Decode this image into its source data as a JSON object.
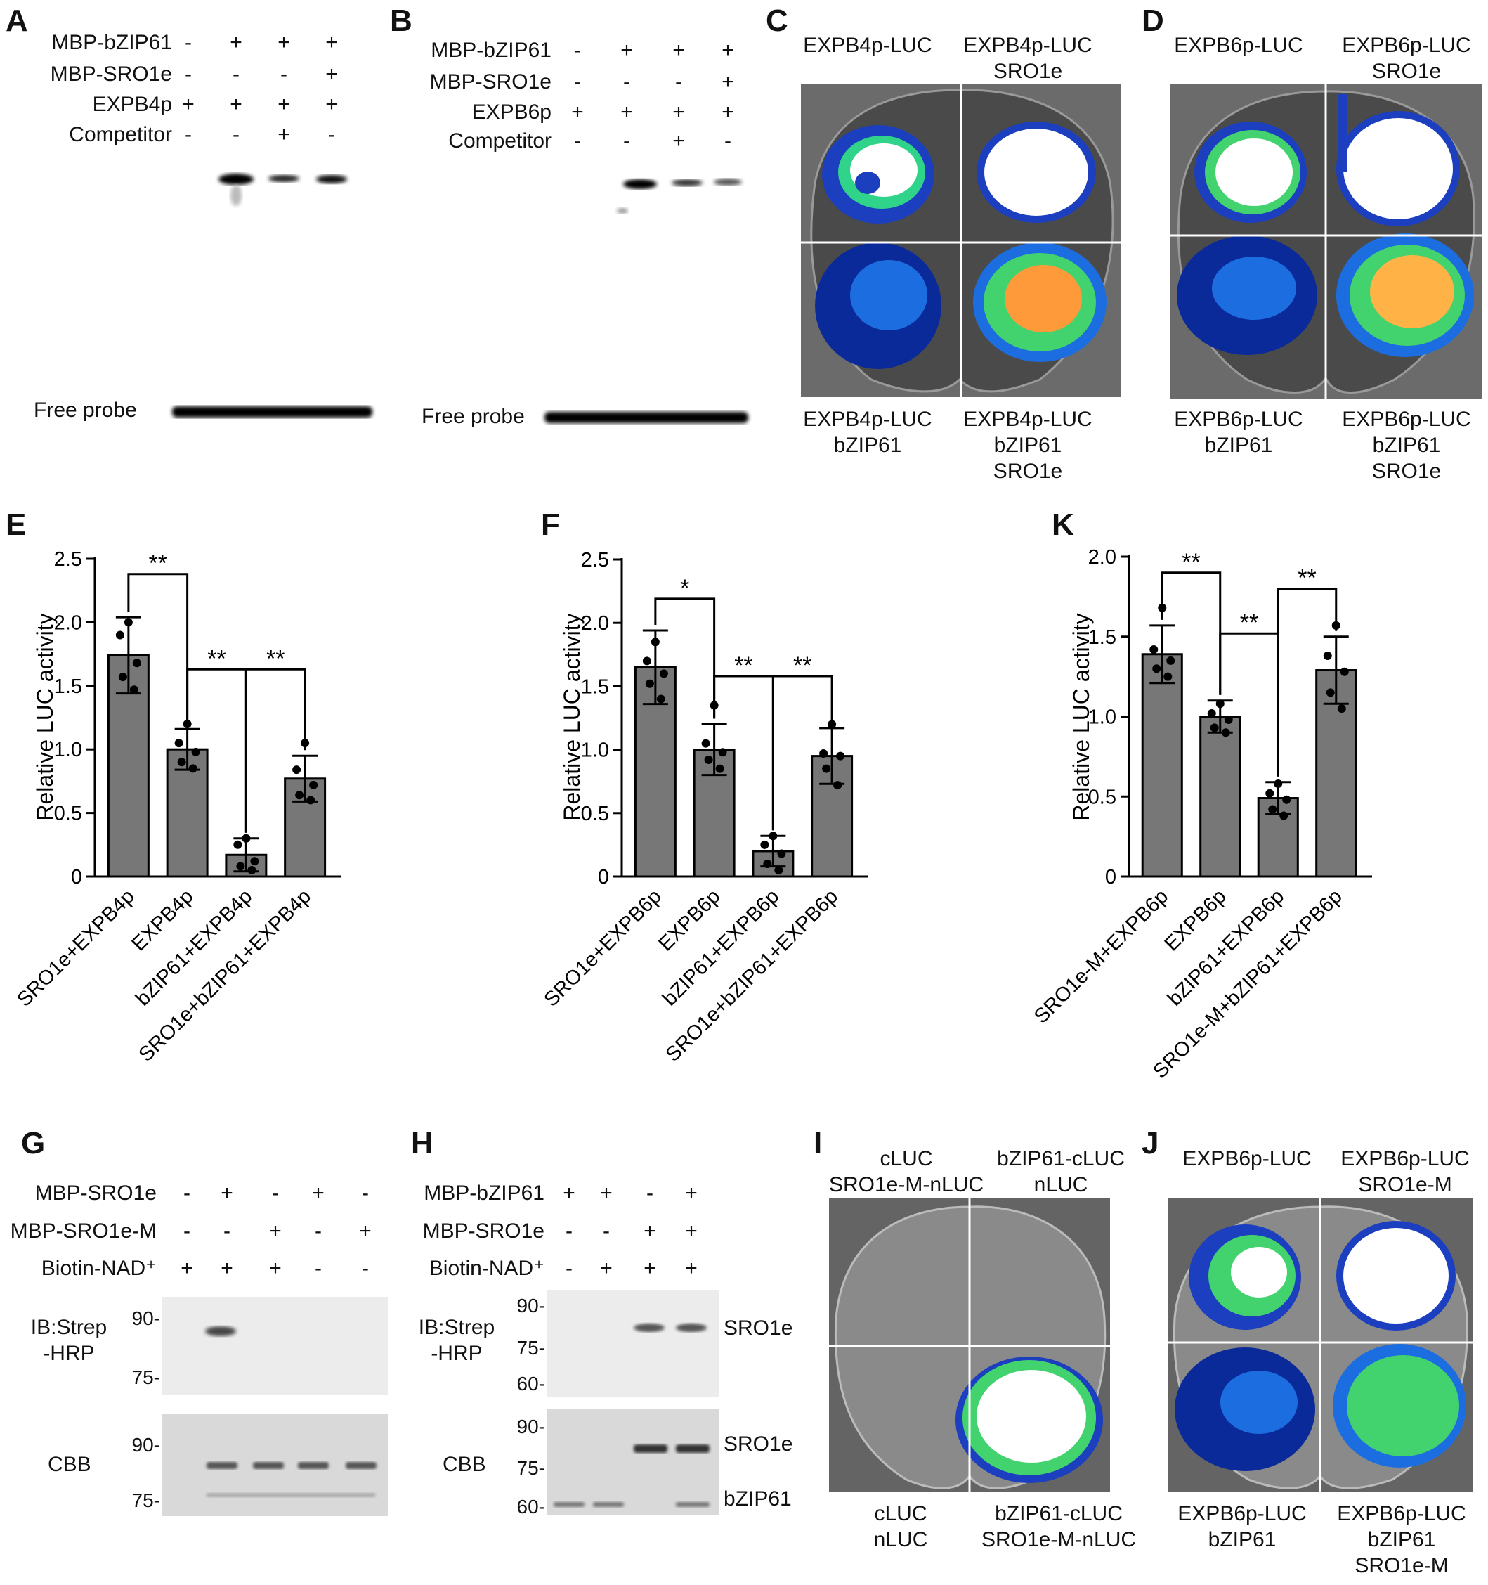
{
  "panels": {
    "A": {
      "letter": "A",
      "rows": [
        {
          "label": "MBP-bZIP61",
          "signs": [
            "-",
            "+",
            "+",
            "+"
          ]
        },
        {
          "label": "MBP-SRO1e",
          "signs": [
            "-",
            "-",
            "-",
            "+"
          ]
        },
        {
          "label": "EXPB4p",
          "signs": [
            "+",
            "+",
            "+",
            "+"
          ]
        },
        {
          "label": "Competitor",
          "signs": [
            "-",
            "-",
            "+",
            "-"
          ]
        }
      ],
      "free_probe": "Free probe"
    },
    "B": {
      "letter": "B",
      "rows": [
        {
          "label": "MBP-bZIP61",
          "signs": [
            "-",
            "+",
            "+",
            "+"
          ]
        },
        {
          "label": "MBP-SRO1e",
          "signs": [
            "-",
            "-",
            "-",
            "+"
          ]
        },
        {
          "label": "EXPB6p",
          "signs": [
            "+",
            "+",
            "+",
            "+"
          ]
        },
        {
          "label": "Competitor",
          "signs": [
            "-",
            "-",
            "+",
            "-"
          ]
        }
      ],
      "free_probe": "Free probe"
    },
    "C": {
      "letter": "C",
      "top_left": "EXPB4p-LUC",
      "top_right": [
        "EXPB4p-LUC",
        "SRO1e"
      ],
      "bottom_left": [
        "EXPB4p-LUC",
        "bZIP61"
      ],
      "bottom_right": [
        "EXPB4p-LUC",
        "bZIP61",
        "SRO1e"
      ]
    },
    "D": {
      "letter": "D",
      "top_left": "EXPB6p-LUC",
      "top_right": [
        "EXPB6p-LUC",
        "SRO1e"
      ],
      "bottom_left": [
        "EXPB6p-LUC",
        "bZIP61"
      ],
      "bottom_right": [
        "EXPB6p-LUC",
        "bZIP61",
        "SRO1e"
      ]
    },
    "G": {
      "letter": "G",
      "rows": [
        {
          "label": "MBP-SRO1e",
          "signs": [
            "-",
            "+",
            "-",
            "+",
            "-"
          ]
        },
        {
          "label": "MBP-SRO1e-M",
          "signs": [
            "-",
            "-",
            "+",
            "-",
            "+"
          ]
        },
        {
          "label": "Biotin-NAD⁺",
          "signs": [
            "+",
            "+",
            "+",
            "-",
            "-"
          ]
        }
      ],
      "ib_label": [
        "IB:Strep",
        "-HRP"
      ],
      "cbb_label": "CBB",
      "ib_markers": [
        "90-",
        "75-"
      ],
      "cbb_markers": [
        "90-",
        "75-"
      ]
    },
    "H": {
      "letter": "H",
      "rows": [
        {
          "label": "MBP-bZIP61",
          "signs": [
            "+",
            "+",
            "-",
            "+"
          ]
        },
        {
          "label": "MBP-SRO1e",
          "signs": [
            "-",
            "-",
            "+",
            "+"
          ]
        },
        {
          "label": "Biotin-NAD⁺",
          "signs": [
            "-",
            "+",
            "+",
            "+"
          ]
        }
      ],
      "ib_label": [
        "IB:Strep",
        "-HRP"
      ],
      "cbb_label": "CBB",
      "ib_markers": [
        "90-",
        "75-",
        "60-"
      ],
      "cbb_markers": [
        "90-",
        "75-",
        "60-"
      ],
      "band_labels": {
        "ib": "SRO1e",
        "cbb_top": "SRO1e",
        "cbb_bottom": "bZIP61"
      }
    },
    "I": {
      "letter": "I",
      "top_left": [
        "cLUC",
        "SRO1e-M-nLUC"
      ],
      "top_right": [
        "bZIP61-cLUC",
        "nLUC"
      ],
      "bottom_left": [
        "cLUC",
        "nLUC"
      ],
      "bottom_right": [
        "bZIP61-cLUC",
        "SRO1e-M-nLUC"
      ]
    },
    "J": {
      "letter": "J",
      "top_left": "EXPB6p-LUC",
      "top_right": [
        "EXPB6p-LUC",
        "SRO1e-M"
      ],
      "bottom_left": [
        "EXPB6p-LUC",
        "bZIP61"
      ],
      "bottom_right": [
        "EXPB6p-LUC",
        "bZIP61",
        "SRO1e-M"
      ]
    }
  },
  "chart_data": [
    {
      "panel": "E",
      "type": "bar",
      "ylabel": "Relative LUC activity",
      "ylim": [
        0,
        2.5
      ],
      "yticks": [
        "0",
        "0.5",
        "1.0",
        "1.5",
        "2.0",
        "2.5"
      ],
      "categories": [
        "SRO1e+EXPB4p",
        "EXPB4p",
        "bZIP61+EXPB4p",
        "SRO1e+bZIP61+EXPB4p"
      ],
      "values": [
        1.74,
        1.0,
        0.17,
        0.77
      ],
      "errors": [
        0.3,
        0.16,
        0.13,
        0.18
      ],
      "points": [
        [
          2.0,
          1.9,
          1.68,
          1.57,
          1.47
        ],
        [
          1.2,
          1.05,
          0.98,
          0.9,
          0.85
        ],
        [
          0.3,
          0.25,
          0.12,
          0.08,
          0.05
        ],
        [
          1.05,
          0.84,
          0.72,
          0.64,
          0.6
        ]
      ],
      "significance": [
        {
          "from": 0,
          "to": 1,
          "label": "**",
          "level": 2.38
        },
        {
          "from": 1,
          "to": 2,
          "label": "**",
          "level": 1.63
        },
        {
          "from": 2,
          "to": 3,
          "label": "**",
          "level": 1.63
        }
      ]
    },
    {
      "panel": "F",
      "type": "bar",
      "ylabel": "Relative LUC activity",
      "ylim": [
        0,
        2.5
      ],
      "yticks": [
        "0",
        "0.5",
        "1.0",
        "1.5",
        "2.0",
        "2.5"
      ],
      "categories": [
        "SRO1e+EXPB6p",
        "EXPB6p",
        "bZIP61+EXPB6p",
        "SRO1e+bZIP61+EXPB6p"
      ],
      "values": [
        1.65,
        1.0,
        0.2,
        0.95
      ],
      "errors": [
        0.29,
        0.2,
        0.12,
        0.22
      ],
      "points": [
        [
          1.85,
          1.7,
          1.6,
          1.52,
          1.4
        ],
        [
          1.35,
          1.05,
          0.98,
          0.92,
          0.85
        ],
        [
          0.32,
          0.25,
          0.18,
          0.1,
          0.05
        ],
        [
          1.2,
          0.97,
          0.95,
          0.85,
          0.72
        ]
      ],
      "significance": [
        {
          "from": 0,
          "to": 1,
          "label": "*",
          "level": 2.19
        },
        {
          "from": 1,
          "to": 2,
          "label": "**",
          "level": 1.58
        },
        {
          "from": 2,
          "to": 3,
          "label": "**",
          "level": 1.58
        }
      ]
    },
    {
      "panel": "K",
      "type": "bar",
      "ylabel": "Relative LUC activity",
      "ylim": [
        0,
        2.0
      ],
      "yticks": [
        "0",
        "0.5",
        "1.0",
        "1.5",
        "2.0"
      ],
      "categories": [
        "SRO1e-M+EXPB6p",
        "EXPB6p",
        "bZIP61+EXPB6p",
        "SRO1e-M+bZIP61+EXPB6p"
      ],
      "values": [
        1.39,
        1.0,
        0.49,
        1.29
      ],
      "errors": [
        0.18,
        0.1,
        0.1,
        0.21
      ],
      "points": [
        [
          1.68,
          1.42,
          1.35,
          1.3,
          1.25
        ],
        [
          1.08,
          1.02,
          0.98,
          0.93,
          0.9
        ],
        [
          0.58,
          0.52,
          0.48,
          0.42,
          0.38
        ],
        [
          1.57,
          1.38,
          1.28,
          1.15,
          1.05
        ]
      ],
      "significance": [
        {
          "from": 0,
          "to": 1,
          "label": "**",
          "level": 1.9
        },
        {
          "from": 1,
          "to": 2,
          "label": "**",
          "level": 1.52
        },
        {
          "from": 2,
          "to": 3,
          "label": "**",
          "level": 1.8
        }
      ]
    }
  ],
  "chart_letters": {
    "E": "E",
    "F": "F",
    "K": "K"
  }
}
